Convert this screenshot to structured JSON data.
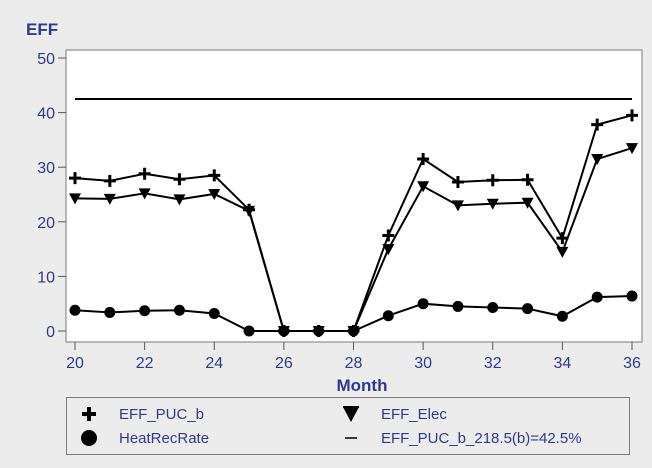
{
  "chart_data": {
    "type": "line",
    "title": "EFF",
    "xlabel": "Month",
    "ylabel": "",
    "xlim": [
      20,
      36
    ],
    "ylim": [
      0,
      50
    ],
    "x_ticks": [
      20,
      22,
      24,
      26,
      28,
      30,
      32,
      34,
      36
    ],
    "y_ticks": [
      0,
      10,
      20,
      30,
      40,
      50
    ],
    "x": [
      20,
      21,
      22,
      23,
      24,
      25,
      26,
      27,
      28,
      29,
      30,
      31,
      32,
      33,
      34,
      35,
      36
    ],
    "series": [
      {
        "name": "EFF_PUC_b",
        "marker": "plus",
        "values": [
          28,
          27.5,
          28.8,
          27.8,
          28.5,
          22.2,
          0,
          0,
          0,
          17.5,
          31.5,
          27.3,
          27.6,
          27.7,
          17,
          37.8,
          39.5
        ]
      },
      {
        "name": "EFF_Elec",
        "marker": "triangle-down",
        "values": [
          24.3,
          24.2,
          25.2,
          24.1,
          25.1,
          22,
          0,
          0,
          0,
          15,
          26.5,
          23,
          23.3,
          23.5,
          14.5,
          31.5,
          33.5
        ]
      },
      {
        "name": "HeatRecRate",
        "marker": "circle",
        "values": [
          3.8,
          3.4,
          3.7,
          3.8,
          3.2,
          0,
          0,
          0,
          0,
          2.8,
          5,
          4.5,
          4.3,
          4.1,
          2.7,
          6.2,
          6.4
        ]
      },
      {
        "name": "EFF_PUC_b_218.5(b)=42.5%",
        "marker": "none",
        "values": [
          42.5,
          42.5,
          42.5,
          42.5,
          42.5,
          42.5,
          42.5,
          42.5,
          42.5,
          42.5,
          42.5,
          42.5,
          42.5,
          42.5,
          42.5,
          42.5,
          42.5
        ]
      }
    ],
    "legend_position": "bottom",
    "grid": false
  },
  "colors": {
    "axis_text": "#2b3b8c",
    "lines": "#000000",
    "plot_bg": "#ffffff",
    "page_bg": "#ececec"
  }
}
